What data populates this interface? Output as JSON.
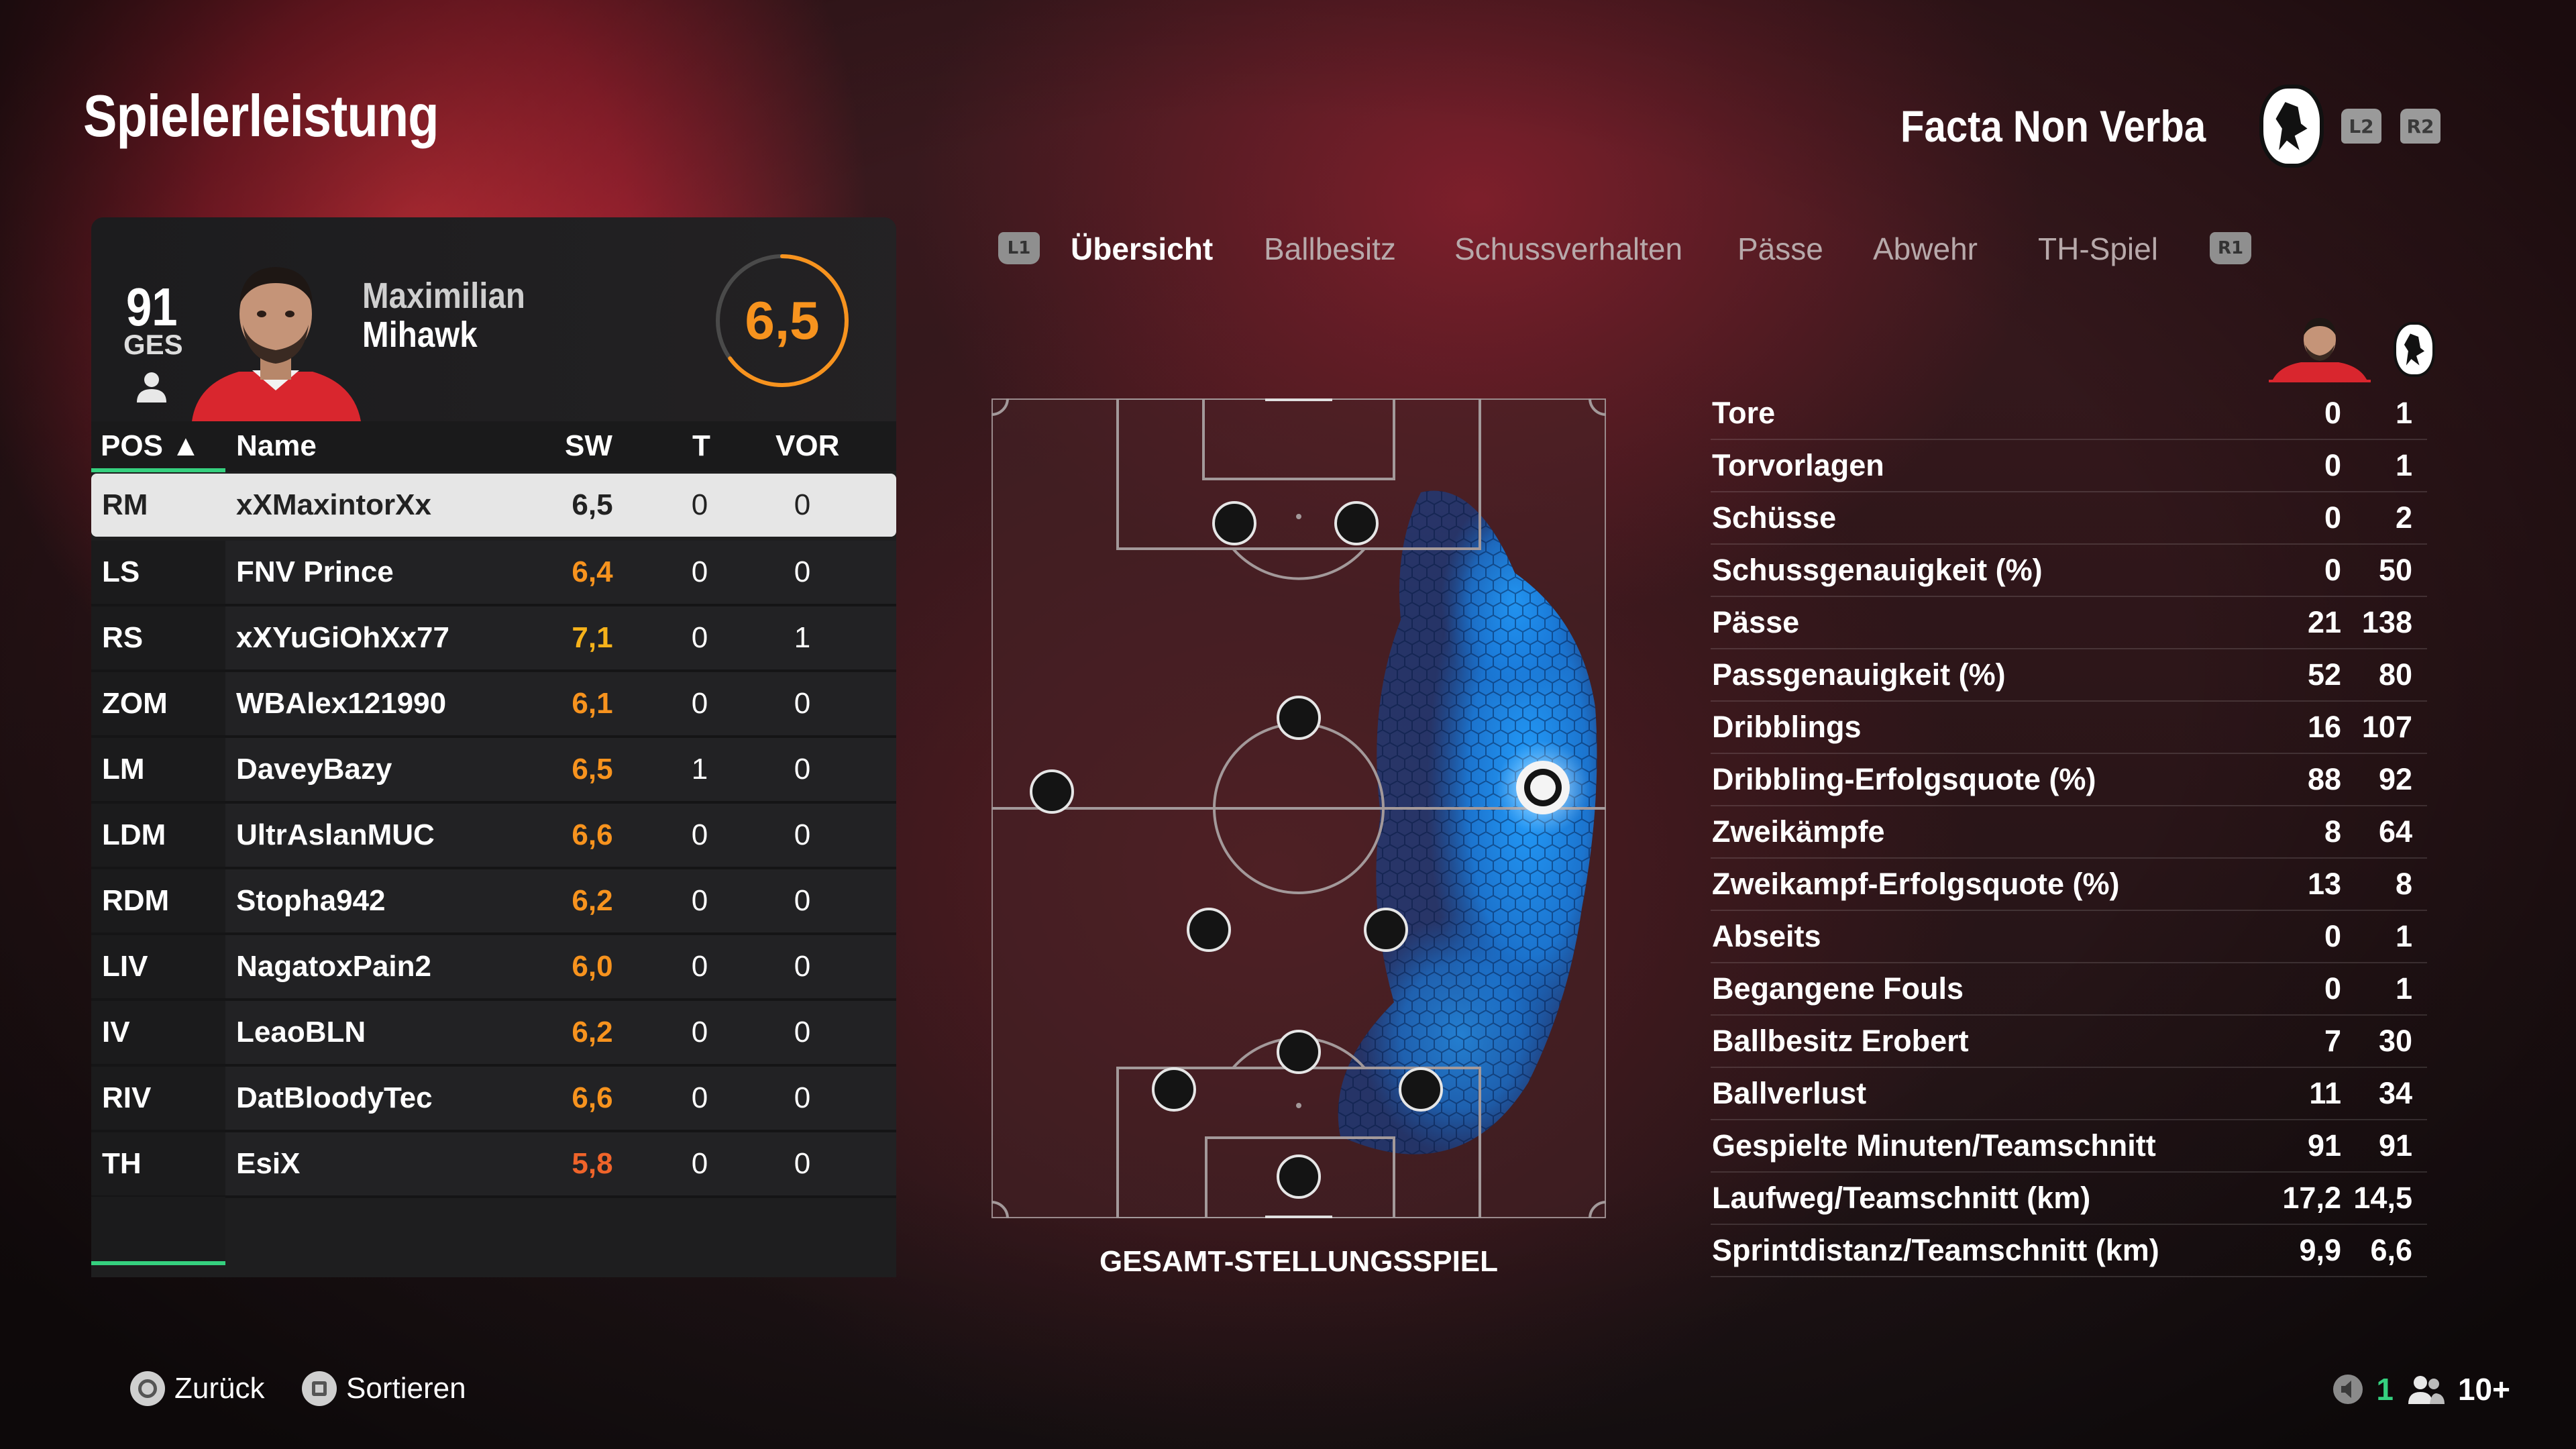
{
  "page": {
    "title": "Spielerleistung"
  },
  "header": {
    "club_name": "Facta Non Verba",
    "l2": "L2",
    "r2": "R2"
  },
  "player_card": {
    "overall": "91",
    "overall_label": "GES",
    "first_name": "Maximilian",
    "last_name": "Mihawk",
    "match_rating": "6,5"
  },
  "table": {
    "headers": {
      "pos": "POS ▲",
      "name": "Name",
      "sw": "SW",
      "t": "T",
      "vor": "VOR"
    },
    "rows": [
      {
        "pos": "RM",
        "name": "xXMaxintorXx",
        "sw": "6,5",
        "t": "0",
        "vor": "0",
        "sw_color": "#222222"
      },
      {
        "pos": "LS",
        "name": "FNV Prince",
        "sw": "6,4",
        "t": "0",
        "vor": "0",
        "sw_color": "#f7931e"
      },
      {
        "pos": "RS",
        "name": "xXYuGiOhXx77",
        "sw": "7,1",
        "t": "0",
        "vor": "1",
        "sw_color": "#f6b21a"
      },
      {
        "pos": "ZOM",
        "name": "WBAlex121990",
        "sw": "6,1",
        "t": "0",
        "vor": "0",
        "sw_color": "#f7931e"
      },
      {
        "pos": "LM",
        "name": "DaveyBazy",
        "sw": "6,5",
        "t": "1",
        "vor": "0",
        "sw_color": "#f7931e"
      },
      {
        "pos": "LDM",
        "name": "UltrAslanMUC",
        "sw": "6,6",
        "t": "0",
        "vor": "0",
        "sw_color": "#f7931e"
      },
      {
        "pos": "RDM",
        "name": "Stopha942",
        "sw": "6,2",
        "t": "0",
        "vor": "0",
        "sw_color": "#f7931e"
      },
      {
        "pos": "LIV",
        "name": "NagatoxPain2",
        "sw": "6,0",
        "t": "0",
        "vor": "0",
        "sw_color": "#f7931e"
      },
      {
        "pos": "IV",
        "name": "LeaoBLN",
        "sw": "6,2",
        "t": "0",
        "vor": "0",
        "sw_color": "#f7931e"
      },
      {
        "pos": "RIV",
        "name": "DatBloodyTec",
        "sw": "6,6",
        "t": "0",
        "vor": "0",
        "sw_color": "#f7931e"
      },
      {
        "pos": "TH",
        "name": "EsiX",
        "sw": "5,8",
        "t": "0",
        "vor": "0",
        "sw_color": "#f0642a"
      }
    ]
  },
  "tabs": {
    "l1": "L1",
    "r1": "R1",
    "items": [
      "Übersicht",
      "Ballbesitz",
      "Schussverhalten",
      "Pässe",
      "Abwehr",
      "TH-Spiel"
    ],
    "active": "Übersicht"
  },
  "pitch": {
    "caption": "GESAMT-STELLUNGSSPIEL"
  },
  "stats": [
    {
      "label": "Tore",
      "player": "0",
      "team": "1"
    },
    {
      "label": "Torvorlagen",
      "player": "0",
      "team": "1"
    },
    {
      "label": "Schüsse",
      "player": "0",
      "team": "2"
    },
    {
      "label": "Schussgenauigkeit (%)",
      "player": "0",
      "team": "50"
    },
    {
      "label": "Pässe",
      "player": "21",
      "team": "138"
    },
    {
      "label": "Passgenauigkeit (%)",
      "player": "52",
      "team": "80"
    },
    {
      "label": "Dribblings",
      "player": "16",
      "team": "107"
    },
    {
      "label": "Dribbling-Erfolgsquote (%)",
      "player": "88",
      "team": "92"
    },
    {
      "label": "Zweikämpfe",
      "player": "8",
      "team": "64"
    },
    {
      "label": "Zweikampf-Erfolgsquote (%)",
      "player": "13",
      "team": "8"
    },
    {
      "label": "Abseits",
      "player": "0",
      "team": "1"
    },
    {
      "label": "Begangene Fouls",
      "player": "0",
      "team": "1"
    },
    {
      "label": "Ballbesitz Erobert",
      "player": "7",
      "team": "30"
    },
    {
      "label": "Ballverlust",
      "player": "11",
      "team": "34"
    },
    {
      "label": "Gespielte Minuten/Teamschnitt",
      "player": "91",
      "team": "91"
    },
    {
      "label": "Laufweg/Teamschnitt (km)",
      "player": "17,2",
      "team": "14,5"
    },
    {
      "label": "Sprintdistanz/Teamschnitt (km)",
      "player": "9,9",
      "team": "6,6"
    }
  ],
  "footer": {
    "back_label": "Zurück",
    "sort_label": "Sortieren",
    "voice_count": "1",
    "party_count": "10+"
  },
  "colors": {
    "accent_orange": "#f7931e",
    "heat_blue": "#1e90ff",
    "selection_green": "#35d07f"
  }
}
